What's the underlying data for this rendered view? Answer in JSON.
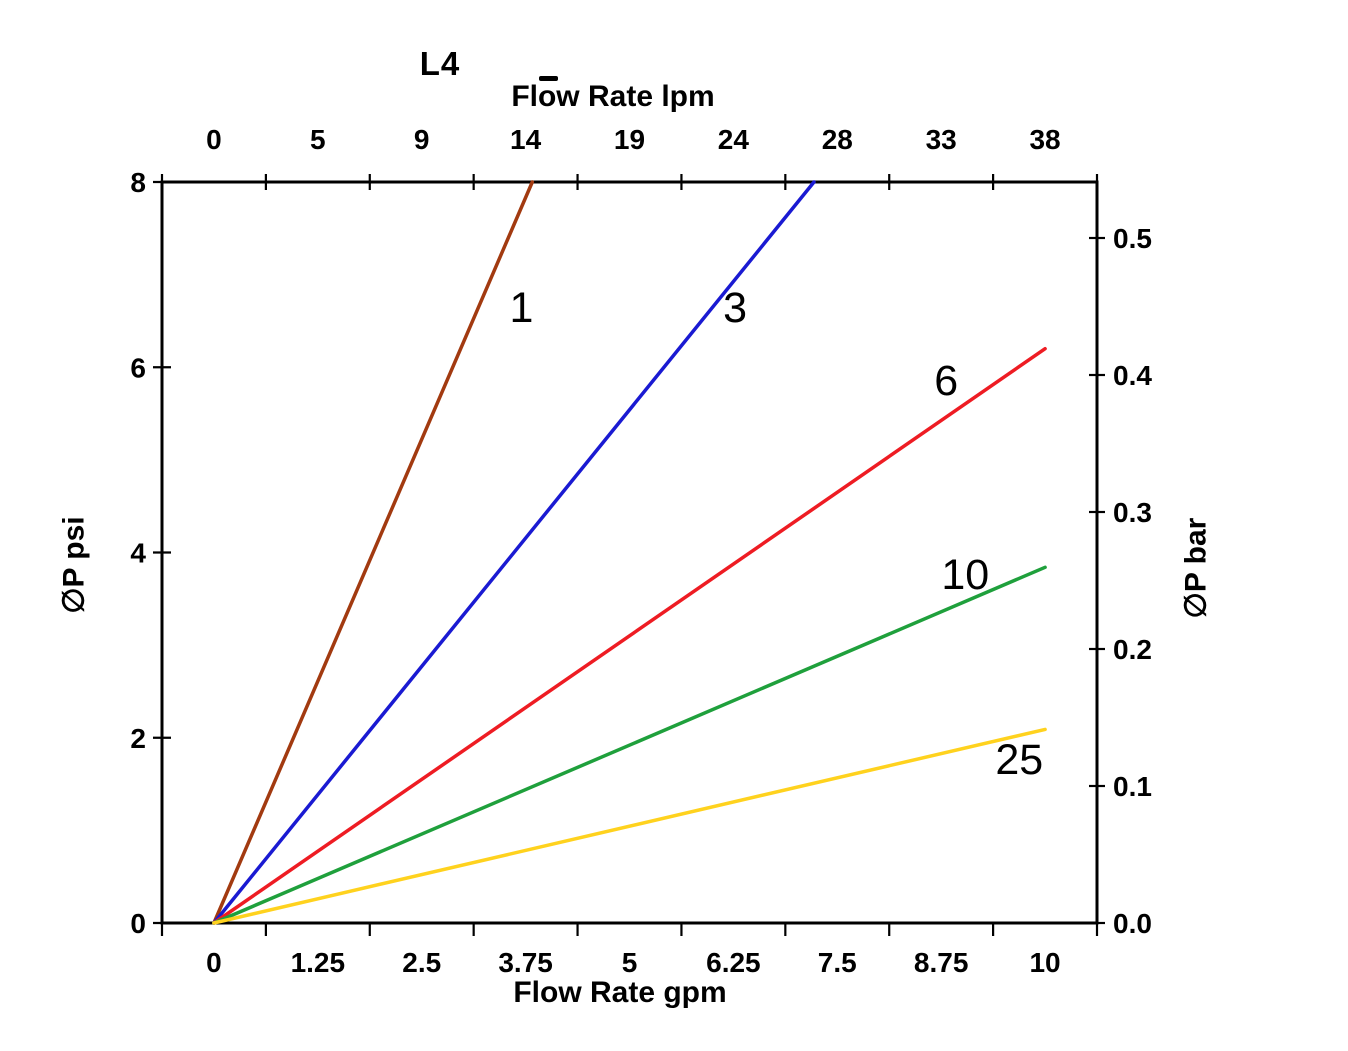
{
  "title": "L4",
  "chart_data": {
    "type": "line",
    "title": "L4",
    "grid": false,
    "legend": "inline-labels-on-lines",
    "axis_color": "#000000",
    "text_color": "#000000",
    "x_axis_top": {
      "label": "Flow Rate lpm",
      "unit": "lpm",
      "tick_labels": [
        "0",
        "5",
        "9",
        "14",
        "19",
        "24",
        "28",
        "33",
        "38"
      ]
    },
    "x_axis_bottom": {
      "label": "Flow Rate gpm",
      "unit": "gpm",
      "tick_labels": [
        "0",
        "1.25",
        "2.5",
        "3.75",
        "5",
        "6.25",
        "7.5",
        "8.75",
        "10"
      ],
      "range": [
        0,
        10
      ]
    },
    "y_axis_left": {
      "label": "∅P psi",
      "unit": "psi",
      "tick_labels": [
        "0",
        "2",
        "4",
        "6",
        "8"
      ],
      "tick_values": [
        0,
        2,
        4,
        6,
        8
      ],
      "range": [
        0,
        8
      ]
    },
    "y_axis_right": {
      "label": "∅P bar",
      "unit": "bar",
      "tick_labels": [
        "0.0",
        "0.1",
        "0.2",
        "0.3",
        "0.4",
        "0.5"
      ],
      "tick_values": [
        0.0,
        0.1,
        0.2,
        0.3,
        0.4,
        0.5
      ]
    },
    "series": [
      {
        "name": "1",
        "color": "#A23A10",
        "points": [
          [
            0,
            0
          ],
          [
            3.83,
            8
          ]
        ],
        "label_at": [
          3.7,
          6.65
        ]
      },
      {
        "name": "3",
        "color": "#1A1AD2",
        "points": [
          [
            0,
            0
          ],
          [
            7.22,
            8
          ]
        ],
        "label_at": [
          6.27,
          6.65
        ]
      },
      {
        "name": "6",
        "color": "#EE1C23",
        "points": [
          [
            0,
            0
          ],
          [
            10,
            6.2
          ]
        ],
        "label_at": [
          8.81,
          5.86
        ]
      },
      {
        "name": "10",
        "color": "#1FA03C",
        "points": [
          [
            0,
            0
          ],
          [
            10,
            3.84
          ]
        ],
        "label_at": [
          9.04,
          3.77
        ]
      },
      {
        "name": "25",
        "color": "#FFD21E",
        "points": [
          [
            0,
            0
          ],
          [
            10,
            2.09
          ]
        ],
        "label_at": [
          9.69,
          1.77
        ]
      }
    ]
  }
}
